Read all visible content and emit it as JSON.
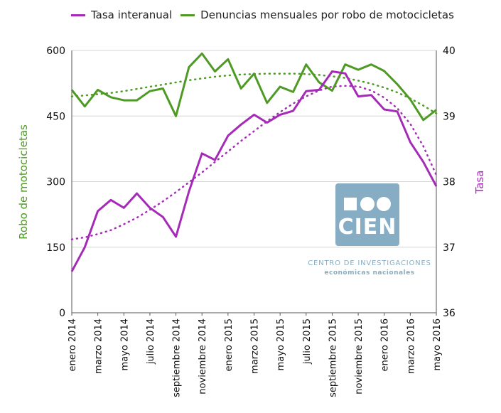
{
  "legend": {
    "series1": "Tasa interanual",
    "series2": "Denuncias mensuales por robo de motocicletas"
  },
  "colors": {
    "purple": "#a52ab8",
    "green": "#4e9a24",
    "grid": "#d0d0d0",
    "logo": "#86adc3"
  },
  "logo": {
    "word": "CIEN",
    "line1": "CENTRO DE INVESTIGACIONES",
    "line2": "económicas nacionales"
  },
  "chart_data": {
    "type": "line",
    "title": "",
    "xlabel": "",
    "ylabel_left": "Robo de motocicletas",
    "ylabel_right": "Tasa",
    "ylim_left": [
      0,
      600
    ],
    "ylim_right": [
      36,
      40
    ],
    "yticks_left": [
      "0",
      "150",
      "300",
      "450",
      "600"
    ],
    "yticks_right": [
      "36",
      "37",
      "38",
      "39",
      "40"
    ],
    "x": [
      "ene 2014",
      "feb 2014",
      "mar 2014",
      "abr 2014",
      "may 2014",
      "jun 2014",
      "jul 2014",
      "ago 2014",
      "sep 2014",
      "oct 2014",
      "nov 2014",
      "dic 2014",
      "ene 2015",
      "feb 2015",
      "mar 2015",
      "abr 2015",
      "may 2015",
      "jun 2015",
      "jul 2015",
      "ago 2015",
      "sep 2015",
      "oct 2015",
      "nov 2015",
      "dic 2015",
      "ene 2016",
      "feb 2016",
      "mar 2016",
      "abr 2016",
      "may 2016"
    ],
    "x_tick_labels": [
      {
        "index": 0,
        "label": "enero 2014"
      },
      {
        "index": 2,
        "label": "marzo 2014"
      },
      {
        "index": 4,
        "label": "mayo 2014"
      },
      {
        "index": 6,
        "label": "julio 2014"
      },
      {
        "index": 8,
        "label": "septiembre 2014"
      },
      {
        "index": 10,
        "label": "noviembre 2014"
      },
      {
        "index": 12,
        "label": "enero 2015"
      },
      {
        "index": 14,
        "label": "marzo 2015"
      },
      {
        "index": 16,
        "label": "mayo 2015"
      },
      {
        "index": 18,
        "label": "julio 2015"
      },
      {
        "index": 20,
        "label": "septiembre 2015"
      },
      {
        "index": 22,
        "label": "noviembre 2015"
      },
      {
        "index": 24,
        "label": "enero 2016"
      },
      {
        "index": 26,
        "label": "marzo 2016"
      },
      {
        "index": 28,
        "label": "mayo 2016"
      }
    ],
    "series": [
      {
        "name": "Denuncias mensuales por robo de motocicletas",
        "axis": "left",
        "color": "#4e9a24",
        "values": [
          510,
          472,
          510,
          493,
          486,
          486,
          507,
          513,
          450,
          562,
          593,
          552,
          580,
          513,
          547,
          480,
          517,
          505,
          568,
          527,
          508,
          568,
          556,
          568,
          553,
          523,
          488,
          441,
          464
        ],
        "trend": [
          495,
          497,
          500,
          503,
          507,
          512,
          517,
          522,
          527,
          532,
          536,
          540,
          543,
          545,
          546,
          547,
          547,
          547,
          546,
          544,
          541,
          537,
          531,
          524,
          515,
          504,
          490,
          474,
          456
        ]
      },
      {
        "name": "Tasa interanual",
        "axis": "right",
        "color": "#a52ab8",
        "values": [
          36.63,
          37.0,
          37.55,
          37.72,
          37.6,
          37.82,
          37.6,
          37.46,
          37.16,
          37.85,
          38.43,
          38.33,
          38.7,
          38.87,
          39.02,
          38.9,
          39.02,
          39.08,
          39.38,
          39.4,
          39.68,
          39.65,
          39.3,
          39.32,
          39.1,
          39.07,
          38.6,
          38.3,
          37.93
        ],
        "trend": [
          37.12,
          37.15,
          37.2,
          37.26,
          37.35,
          37.45,
          37.57,
          37.7,
          37.84,
          37.99,
          38.14,
          38.3,
          38.46,
          38.62,
          38.77,
          38.92,
          39.06,
          39.19,
          39.3,
          39.39,
          39.45,
          39.46,
          39.45,
          39.39,
          39.28,
          39.12,
          38.88,
          38.54,
          38.1
        ]
      }
    ]
  }
}
